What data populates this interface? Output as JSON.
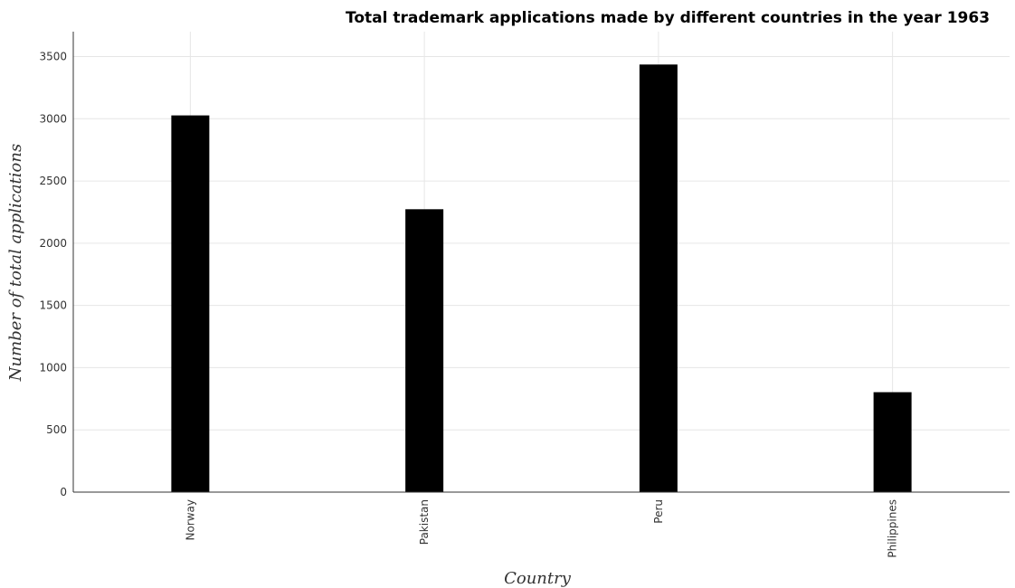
{
  "chart_data": {
    "type": "bar",
    "title": "Total trademark applications made by different countries in the year 1963",
    "xlabel": "Country",
    "ylabel": "Number of total applications",
    "categories": [
      "Norway",
      "Pakistan",
      "Peru",
      "Philippines"
    ],
    "values": [
      3027,
      2273,
      3436,
      803
    ],
    "ylim": [
      0,
      3700
    ],
    "yticks": [
      0,
      500,
      1000,
      1500,
      2000,
      2500,
      3000,
      3500
    ],
    "grid": true,
    "bar_color": "#000000"
  }
}
